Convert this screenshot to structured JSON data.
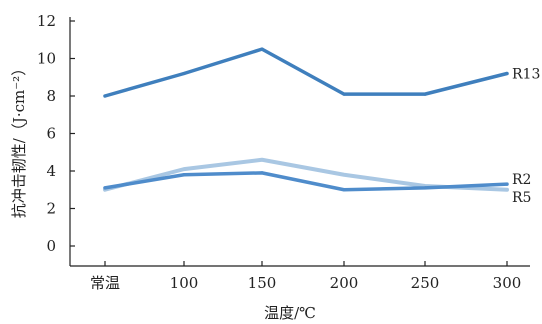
{
  "chart_data": {
    "type": "line",
    "title": "",
    "xlabel": "温度/℃",
    "ylabel": "抗冲击韧性/（J·cm⁻²）",
    "categories": [
      "常温",
      "100",
      "150",
      "200",
      "250",
      "300"
    ],
    "yticks": [
      "0",
      "2",
      "4",
      "6",
      "8",
      "10",
      "12"
    ],
    "ylim": [
      0,
      12
    ],
    "grid": false,
    "legend": "inline-right",
    "series": [
      {
        "name": "R13",
        "values": [
          8.0,
          9.2,
          10.5,
          8.1,
          8.1,
          9.2
        ],
        "color": "#3f7fbd"
      },
      {
        "name": "R2",
        "values": [
          3.1,
          3.8,
          3.9,
          3.0,
          3.1,
          3.3
        ],
        "color": "#4f8ccb"
      },
      {
        "name": "R5",
        "values": [
          3.0,
          4.1,
          4.6,
          3.8,
          3.2,
          3.0
        ],
        "color": "#a9c7e3"
      }
    ]
  }
}
